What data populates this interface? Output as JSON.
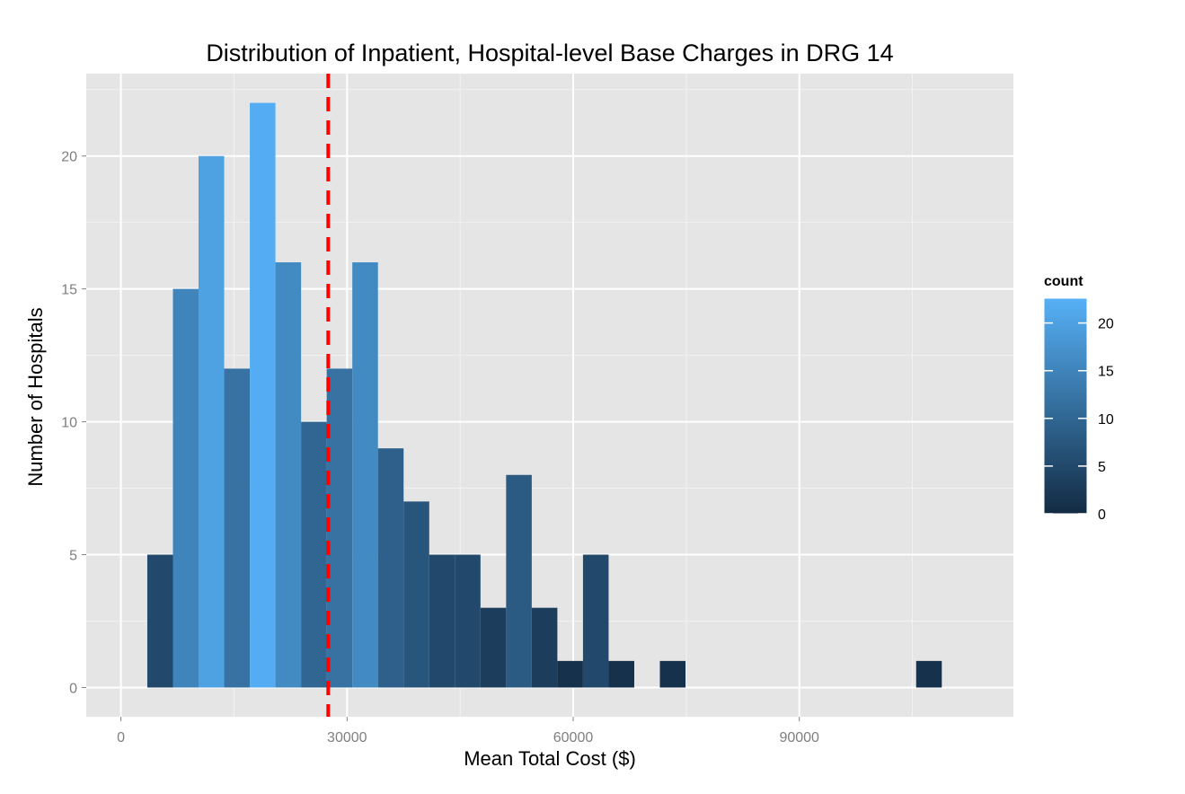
{
  "chart_data": {
    "type": "bar",
    "title": "Distribution of Inpatient, Hospital-level Base Charges in DRG 14",
    "xlabel": "Mean Total Cost ($)",
    "ylabel": "Number of Hospitals",
    "xlim": [
      -4600,
      118400
    ],
    "ylim": [
      -1.1,
      23.1
    ],
    "x_ticks": [
      0,
      30000,
      60000,
      90000
    ],
    "x_tick_labels": [
      "0",
      "30000",
      "60000",
      "90000"
    ],
    "y_ticks": [
      0,
      5,
      10,
      15,
      20
    ],
    "y_tick_labels": [
      "0",
      "5",
      "10",
      "15",
      "20"
    ],
    "bin_width": 3400,
    "bins": [
      {
        "x": 5200,
        "count": 5
      },
      {
        "x": 8600,
        "count": 15
      },
      {
        "x": 12000,
        "count": 20
      },
      {
        "x": 15400,
        "count": 12
      },
      {
        "x": 18800,
        "count": 22
      },
      {
        "x": 22200,
        "count": 16
      },
      {
        "x": 25600,
        "count": 10
      },
      {
        "x": 29000,
        "count": 12
      },
      {
        "x": 32400,
        "count": 16
      },
      {
        "x": 35800,
        "count": 9
      },
      {
        "x": 39200,
        "count": 7
      },
      {
        "x": 42600,
        "count": 5
      },
      {
        "x": 46000,
        "count": 5
      },
      {
        "x": 49400,
        "count": 3
      },
      {
        "x": 52800,
        "count": 8
      },
      {
        "x": 56200,
        "count": 3
      },
      {
        "x": 59600,
        "count": 1
      },
      {
        "x": 63000,
        "count": 5
      },
      {
        "x": 66400,
        "count": 1
      },
      {
        "x": 73200,
        "count": 1
      },
      {
        "x": 107200,
        "count": 1
      }
    ],
    "reference_line": {
      "x": 27500,
      "color": "#ff0000",
      "style": "dashed"
    },
    "grid": true,
    "legend": {
      "title": "count",
      "placement": "right",
      "ticks": [
        0,
        5,
        10,
        15,
        20
      ],
      "tick_labels": [
        "0",
        "5",
        "10",
        "15",
        "20"
      ],
      "range": [
        0,
        22.6
      ],
      "low_color": "#132B43",
      "high_color": "#56B1F7"
    },
    "colors": {
      "panel_background": "#E5E5E5",
      "grid_major": "#FFFFFF",
      "grid_minor": "#F2F2F2",
      "tick_label": "#7F7F7F"
    }
  }
}
